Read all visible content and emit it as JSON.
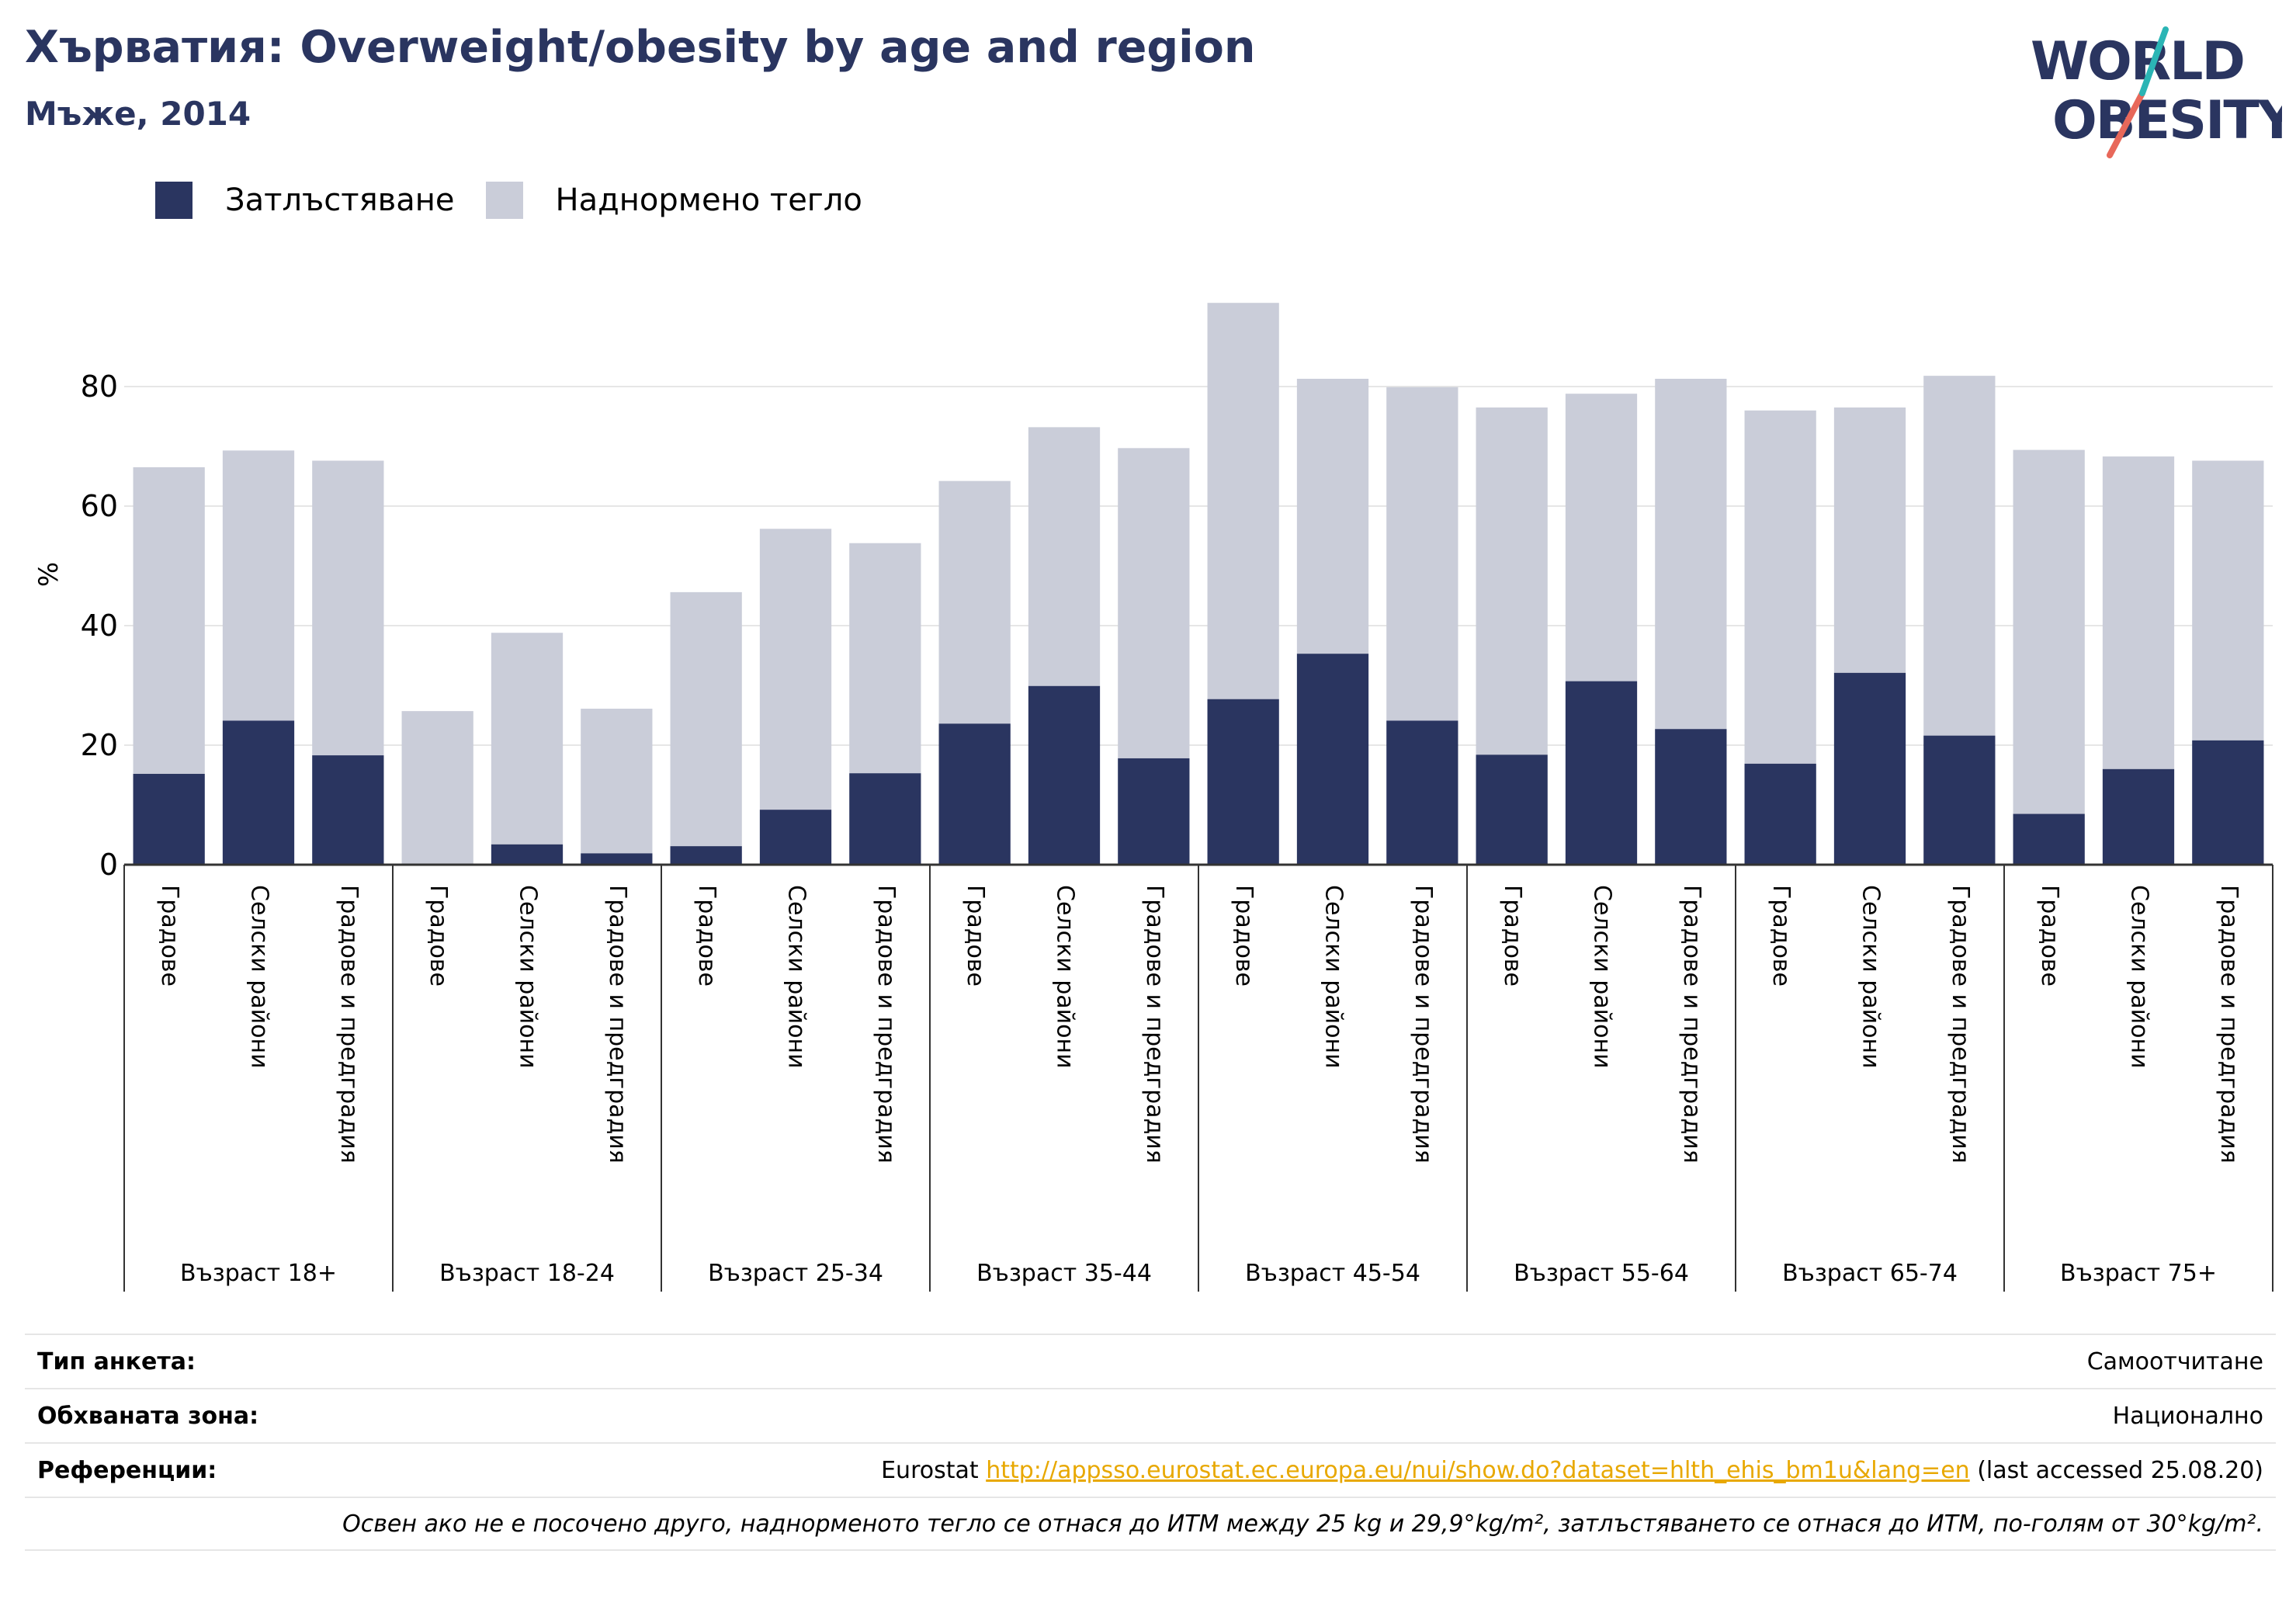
{
  "header": {
    "title": "Хърватия: Overweight/obesity by age and region",
    "subtitle": "Мъже, 2014"
  },
  "logo": {
    "line1": "WORLD",
    "line2": "OBESITY"
  },
  "colors": {
    "obesity": "#2a3560",
    "overweight": "#cacdd9",
    "accent": "#2a3560",
    "link": "#e8a800"
  },
  "chart_data": {
    "type": "bar",
    "stacked": true,
    "ylabel": "%",
    "ylim": [
      0,
      95
    ],
    "yticks": [
      0,
      20,
      40,
      60,
      80
    ],
    "grid": true,
    "legend_position": "top-left",
    "groups": [
      "Възраст 18+",
      "Възраст 18-24",
      "Възраст 25-34",
      "Възраст 35-44",
      "Възраст 45-54",
      "Възраст 55-64",
      "Възраст 65-74",
      "Възраст 75+"
    ],
    "subcategories": [
      "Градове",
      "Селски райони",
      "Градове и предградия"
    ],
    "series": [
      {
        "name": "Затлъстяване",
        "values": [
          15.2,
          24.1,
          18.3,
          0,
          3.4,
          1.9,
          3.1,
          9.2,
          15.3,
          23.6,
          29.9,
          17.8,
          27.7,
          35.3,
          24.1,
          18.4,
          30.7,
          22.7,
          16.9,
          32.1,
          21.6,
          8.5,
          16.0,
          20.8
        ]
      },
      {
        "name": "Наднормено тегло",
        "values": [
          51.3,
          45.2,
          49.3,
          25.7,
          35.4,
          24.2,
          42.5,
          47.0,
          38.5,
          40.6,
          43.3,
          51.9,
          66.3,
          46.0,
          55.8,
          58.1,
          48.1,
          58.6,
          59.1,
          44.4,
          60.2,
          60.9,
          52.3,
          46.8
        ]
      }
    ]
  },
  "footer": {
    "survey_label": "Тип анкета:",
    "survey_value": "Самоотчитане",
    "coverage_label": "Обхваната зона:",
    "coverage_value": "Национално",
    "refs_label": "Референции:",
    "refs_prefix": "Eurostat",
    "refs_link": "http://appsso.eurostat.ec.europa.eu/nui/show.do?dataset=hlth_ehis_bm1u&lang=en",
    "refs_suffix": "(last accessed 25.08.20)",
    "note": "Освен ако не е посочено друго, наднорменото тегло се отнася до ИТМ между 25 kg и 29,9°kg/m², затлъстяването се отнася до ИТМ, по-голям от 30°kg/m²."
  }
}
